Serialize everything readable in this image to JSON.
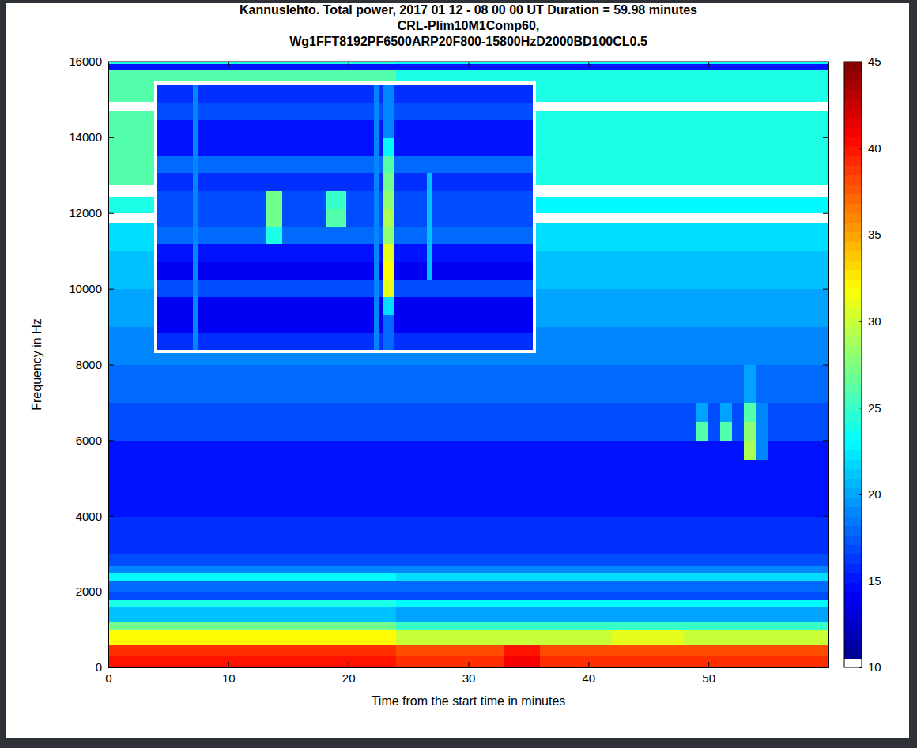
{
  "chart_data": [
    {
      "type": "heatmap",
      "title": [
        "Kannuslehto. Total power, 2017 01 12 - 08 00 00 UT  Duration = 59.98 minutes",
        "CRL-Plim10M1Comp60,",
        "Wg1FFT8192PF6500ARP20F800-15800HzD2000BD100CL0.5"
      ],
      "x_label": "Time from the start time in minutes",
      "y_label": "Frequency in Hz",
      "xlim": [
        0,
        60
      ],
      "ylim": [
        0,
        16000
      ],
      "xticks": [
        0,
        10,
        20,
        30,
        40,
        50
      ],
      "yticks": [
        0,
        2000,
        4000,
        6000,
        8000,
        10000,
        12000,
        14000,
        16000
      ],
      "colorbar": {
        "range": [
          10,
          45
        ],
        "ticks": [
          10,
          15,
          20,
          25,
          30,
          35,
          40,
          45
        ]
      },
      "x_edges": [
        0,
        3,
        6,
        9,
        12,
        15,
        18,
        21,
        24,
        27,
        30,
        33,
        36,
        39,
        42,
        45,
        48,
        49,
        50,
        51,
        52,
        53,
        54,
        55,
        57,
        60
      ],
      "y_edges": [
        0,
        300,
        600,
        1000,
        1200,
        1600,
        1800,
        2000,
        2300,
        2500,
        2700,
        3000,
        4000,
        5000,
        5500,
        6000,
        6500,
        7000,
        8000,
        9000,
        10000,
        11000,
        11750,
        12000,
        12450,
        12750,
        14000,
        14700,
        14950,
        15800,
        15950,
        16000
      ],
      "z": [
        [
          40,
          40,
          40,
          40,
          40,
          40,
          40,
          40,
          39,
          39,
          39,
          41,
          39,
          39,
          39,
          39,
          39,
          39,
          39,
          39,
          39,
          39,
          39,
          39,
          39
        ],
        [
          39,
          39,
          39,
          39,
          39,
          39,
          39,
          39,
          38,
          38,
          38,
          40,
          38,
          38,
          38,
          38,
          38,
          38,
          38,
          38,
          38,
          38,
          38,
          38,
          38
        ],
        [
          32,
          32,
          32,
          32,
          32,
          32,
          32,
          32,
          30,
          30,
          30,
          30,
          30,
          30,
          31,
          31,
          30,
          30,
          30,
          30,
          30,
          30,
          30,
          30,
          30
        ],
        [
          27,
          27,
          27,
          27,
          27,
          27,
          27,
          27,
          25,
          25,
          25,
          25,
          25,
          25,
          25,
          25,
          25,
          25,
          25,
          25,
          25,
          25,
          25,
          25,
          25
        ],
        [
          21,
          21,
          21,
          21,
          21,
          21,
          21,
          21,
          20,
          20,
          20,
          20,
          20,
          20,
          20,
          20,
          20,
          20,
          20,
          20,
          20,
          20,
          20,
          20,
          20
        ],
        [
          24,
          24,
          24,
          24,
          24,
          24,
          24,
          24,
          23,
          23,
          23,
          23,
          23,
          23,
          23,
          23,
          23,
          23,
          23,
          23,
          23,
          23,
          23,
          23,
          23
        ],
        [
          17,
          17,
          17,
          17,
          17,
          17,
          17,
          17,
          17,
          17,
          17,
          17,
          17,
          17,
          17,
          17,
          17,
          17,
          17,
          17,
          17,
          17,
          17,
          17,
          17
        ],
        [
          18,
          18,
          18,
          18,
          18,
          18,
          18,
          18,
          18,
          18,
          18,
          18,
          18,
          18,
          18,
          18,
          18,
          18,
          18,
          18,
          18,
          18,
          18,
          18,
          18
        ],
        [
          23,
          23,
          23,
          23,
          23,
          23,
          23,
          23,
          22,
          22,
          22,
          22,
          22,
          22,
          22,
          22,
          22,
          22,
          22,
          22,
          22,
          22,
          22,
          22,
          22
        ],
        [
          19,
          19,
          19,
          19,
          19,
          19,
          19,
          19,
          19,
          19,
          19,
          19,
          19,
          19,
          19,
          19,
          19,
          19,
          19,
          19,
          19,
          19,
          19,
          19,
          19
        ],
        [
          17,
          17,
          17,
          17,
          17,
          17,
          17,
          17,
          17,
          17,
          17,
          17,
          17,
          17,
          17,
          17,
          17,
          17,
          17,
          17,
          17,
          17,
          17,
          17,
          17
        ],
        [
          16,
          16,
          16,
          16,
          16,
          16,
          16,
          16,
          16,
          16,
          16,
          16,
          16,
          16,
          16,
          16,
          16,
          16,
          16,
          16,
          16,
          16,
          16,
          16,
          16
        ],
        [
          15,
          15,
          15,
          15,
          15,
          15,
          15,
          15,
          15,
          15,
          15,
          15,
          15,
          15,
          15,
          15,
          15,
          15,
          15,
          15,
          15,
          15,
          15,
          15,
          15
        ],
        [
          15,
          15,
          15,
          15,
          15,
          15,
          15,
          15,
          15,
          15,
          15,
          15,
          15,
          15,
          15,
          15,
          15,
          15,
          15,
          15,
          15,
          15,
          15,
          15,
          15
        ],
        [
          15,
          15,
          15,
          15,
          15,
          15,
          15,
          15,
          15,
          15,
          15,
          15,
          15,
          15,
          15,
          15,
          15,
          15,
          15,
          15,
          15,
          29,
          19,
          15,
          15
        ],
        [
          17,
          17,
          17,
          17,
          17,
          17,
          17,
          17,
          17,
          17,
          17,
          17,
          17,
          17,
          17,
          17,
          17,
          26,
          17,
          26,
          17,
          28,
          19,
          17,
          17
        ],
        [
          17,
          17,
          17,
          17,
          17,
          17,
          17,
          17,
          17,
          17,
          17,
          17,
          17,
          17,
          17,
          17,
          17,
          20,
          17,
          20,
          17,
          26,
          19,
          17,
          17
        ],
        [
          18,
          18,
          18,
          18,
          18,
          18,
          18,
          18,
          18,
          18,
          18,
          18,
          18,
          18,
          18,
          18,
          18,
          18,
          18,
          18,
          18,
          20,
          18,
          18,
          18
        ],
        [
          19,
          19,
          19,
          19,
          19,
          19,
          19,
          19,
          19,
          19,
          19,
          19,
          19,
          19,
          19,
          19,
          19,
          19,
          19,
          19,
          19,
          19,
          19,
          19,
          19
        ],
        [
          20,
          20,
          20,
          20,
          20,
          20,
          20,
          20,
          20,
          20,
          20,
          20,
          20,
          20,
          20,
          20,
          20,
          20,
          20,
          20,
          20,
          20,
          20,
          20,
          20
        ],
        [
          21,
          21,
          21,
          21,
          21,
          21,
          21,
          21,
          21,
          21,
          21,
          21,
          21,
          21,
          21,
          21,
          21,
          21,
          21,
          21,
          21,
          21,
          21,
          21,
          21
        ],
        [
          22,
          22,
          22,
          22,
          22,
          22,
          22,
          22,
          22,
          22,
          22,
          22,
          22,
          22,
          22,
          22,
          22,
          22,
          22,
          22,
          22,
          22,
          22,
          22,
          22
        ],
        [
          8,
          8,
          8,
          8,
          8,
          8,
          8,
          8,
          8,
          8,
          8,
          8,
          8,
          8,
          8,
          8,
          8,
          8,
          8,
          8,
          8,
          8,
          8,
          8,
          8
        ],
        [
          24,
          24,
          24,
          24,
          24,
          24,
          24,
          24,
          23,
          23,
          23,
          23,
          23,
          23,
          23,
          23,
          23,
          23,
          23,
          23,
          23,
          23,
          23,
          23,
          23
        ],
        [
          8,
          8,
          8,
          8,
          8,
          8,
          8,
          8,
          8,
          8,
          8,
          8,
          8,
          8,
          8,
          8,
          8,
          8,
          8,
          8,
          8,
          8,
          8,
          8,
          8
        ],
        [
          26,
          26,
          26,
          26,
          26,
          26,
          26,
          26,
          24,
          24,
          24,
          24,
          24,
          24,
          24,
          24,
          24,
          24,
          24,
          24,
          24,
          24,
          24,
          24,
          24
        ],
        [
          26,
          26,
          26,
          26,
          26,
          26,
          26,
          26,
          24,
          24,
          24,
          24,
          24,
          24,
          24,
          24,
          24,
          24,
          24,
          24,
          24,
          24,
          24,
          24,
          24
        ],
        [
          8,
          8,
          8,
          8,
          8,
          8,
          8,
          8,
          8,
          8,
          8,
          8,
          8,
          8,
          8,
          8,
          8,
          8,
          8,
          8,
          8,
          8,
          8,
          8,
          8
        ],
        [
          26,
          26,
          26,
          26,
          26,
          26,
          26,
          26,
          24,
          24,
          24,
          24,
          24,
          24,
          24,
          24,
          24,
          24,
          24,
          24,
          24,
          24,
          24,
          24,
          24
        ],
        [
          15,
          15,
          15,
          15,
          15,
          15,
          15,
          15,
          15,
          15,
          15,
          15,
          15,
          15,
          15,
          15,
          15,
          15,
          15,
          15,
          15,
          15,
          15,
          15,
          15
        ],
        [
          24,
          24,
          24,
          24,
          24,
          24,
          24,
          24,
          23,
          23,
          23,
          23,
          23,
          23,
          23,
          23,
          23,
          23,
          23,
          23,
          23,
          23,
          23,
          23,
          23
        ]
      ]
    },
    {
      "type": "heatmap",
      "tick_labels": false,
      "xlim": [
        45,
        58.5
      ],
      "ylim": [
        4900,
        7900
      ],
      "colorbar": {
        "range": [
          10,
          45
        ]
      },
      "x_edges": [
        45,
        46.3,
        46.5,
        48.9,
        49.5,
        51.1,
        51.8,
        52.8,
        53.0,
        53.1,
        53.5,
        54.7,
        54.9,
        58.5
      ],
      "y_edges": [
        4900,
        5100,
        5300,
        5500,
        5700,
        5900,
        6100,
        6300,
        6500,
        6700,
        6900,
        7100,
        7300,
        7500,
        7700,
        7900
      ],
      "z": [
        [
          16,
          19,
          16,
          16,
          16,
          16,
          16,
          19,
          16,
          18,
          16,
          16,
          16
        ],
        [
          14,
          19,
          14,
          14,
          14,
          14,
          14,
          19,
          14,
          18,
          14,
          14,
          14
        ],
        [
          14,
          19,
          14,
          14,
          14,
          14,
          14,
          19,
          14,
          22,
          14,
          14,
          14
        ],
        [
          17,
          19,
          17,
          17,
          17,
          17,
          17,
          19,
          17,
          31,
          17,
          17,
          17
        ],
        [
          14,
          19,
          14,
          14,
          14,
          14,
          14,
          19,
          14,
          32,
          14,
          21,
          14
        ],
        [
          15,
          19,
          15,
          15,
          15,
          15,
          15,
          19,
          15,
          31,
          15,
          21,
          15
        ],
        [
          18,
          19,
          18,
          24,
          18,
          18,
          18,
          19,
          18,
          28,
          18,
          21,
          18
        ],
        [
          17,
          19,
          17,
          27,
          17,
          26,
          17,
          19,
          17,
          29,
          17,
          21,
          17
        ],
        [
          17,
          19,
          17,
          27,
          17,
          25,
          17,
          19,
          17,
          28,
          17,
          21,
          17
        ],
        [
          16,
          19,
          16,
          16,
          16,
          16,
          16,
          19,
          16,
          27,
          16,
          21,
          16
        ],
        [
          18,
          19,
          18,
          18,
          18,
          18,
          18,
          19,
          18,
          26,
          18,
          18,
          18
        ],
        [
          15,
          19,
          15,
          15,
          15,
          15,
          15,
          19,
          15,
          23,
          15,
          15,
          15
        ],
        [
          15,
          19,
          15,
          15,
          15,
          15,
          15,
          19,
          15,
          19,
          15,
          15,
          15
        ],
        [
          17,
          19,
          17,
          17,
          17,
          17,
          17,
          19,
          17,
          19,
          17,
          17,
          17
        ],
        [
          16,
          19,
          16,
          16,
          16,
          16,
          16,
          19,
          16,
          19,
          16,
          16,
          16
        ]
      ]
    }
  ]
}
